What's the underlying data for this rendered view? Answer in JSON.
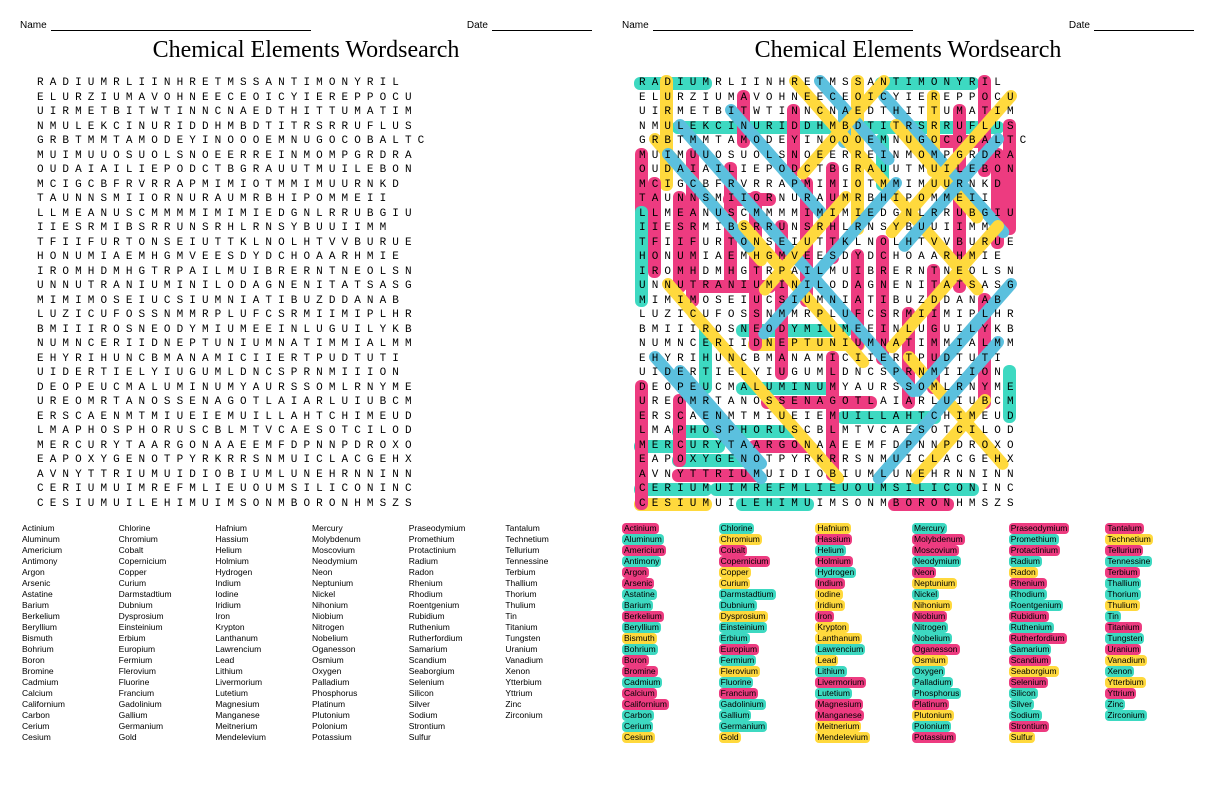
{
  "labels": {
    "name": "Name",
    "date": "Date",
    "title": "Chemical Elements Wordsearch"
  },
  "colors": {
    "pink": "#ed3b80",
    "teal": "#3dd9c1",
    "yellow": "#ffd93d",
    "blue": "#5bc0de"
  },
  "grid": [
    "RADIUMRLIINHRETMSSANTIMONYRIL",
    "ELURZIUMAVOHNEECEOICYIEREPPOCU",
    "UIRMETBITWTINNCNAEDTHITTUMATIM",
    "NMULEKCINURIDDHMBDTITRSRRUFLUS",
    "GRBTMMTAMODEYINOOOEMNUGOCOBALTC",
    "MUIMUUOSUOLSNOEERREINMOMPGRDRA",
    "OUDAIAILIEPODCTBGRAUUTMUILEB ON",
    "MCIGCBFRVRRAPMI MIOTMMIMUURNKD",
    "TAUNNSMIIORNURAUMRBHIPOMMEII",
    "LLMEANUSCMMMMI MIMIEDGNLRRUBGIU",
    "IIESRMIBSRRUNSRHLRNSY BUUIIMM",
    "TFIIFURTONSEIUTTKLNOLHTVVBURUE",
    "HONUMI AEMHGMVEESDYDCHOAARHMIE",
    "IRO MHDMHGTRPAILMUIBRERNTNEOLSN",
    "UNNUTRANI UMINI LODAGNENITATSASG",
    "MI MIMOSEI UCSIUMNIATIBUZDDANAB",
    "LUZICUFOSSNMMRPLUFCSRMI IMI PLHR",
    "BMI IIROSNEODYMI UMEEINLUGUILYKB",
    "NUMNCER IIDNEP TUNIUMNATI MMI ALMM",
    "EHYR IHUNCBMANAMI CIIERTPU DTUTI",
    "UIDERTI ELYI UGUMLDNCSPRN MI II ON",
    "DEOPEUCMALUMI NUMYAURSSOMLRNYME",
    "UREOMRTANOSS ENA GOTLAIARLUIUBCM",
    "ERSCAE NMT MIUEIEMUILLAHTCHIMEUD",
    "LMAPHOSPHORUSCBLMTVCAESOTCILOD",
    "MERCURYTAARGONAAEEMFDPNNPDROXO",
    "EAPOXY G ENOTPY RKRR SNMUICLACGEHX",
    "AVNYTTR IUMUIDIOBIUMLUNEHRNNINN",
    "CER IUMUIMREFMLIEUOUMSILICON INC",
    "CES IUMUILEH IMUI MSONMBORONHMSZS"
  ],
  "word_columns": [
    [
      "Actinium",
      "Aluminum",
      "Americium",
      "Antimony",
      "Argon",
      "Arsenic",
      "Astatine",
      "Barium",
      "Berkelium",
      "Beryllium",
      "Bismuth",
      "Bohrium",
      "Boron",
      "Bromine",
      "Cadmium",
      "Calcium",
      "Californium",
      "Carbon",
      "Cerium",
      "Cesium"
    ],
    [
      "Chlorine",
      "Chromium",
      "Cobalt",
      "Copernicium",
      "Copper",
      "Curium",
      "Darmstadtium",
      "Dubnium",
      "Dysprosium",
      "Einsteinium",
      "Erbium",
      "Europium",
      "Fermium",
      "Flerovium",
      "Fluorine",
      "Francium",
      "Gadolinium",
      "Gallium",
      "Germanium",
      "Gold"
    ],
    [
      "Hafnium",
      "Hassium",
      "Helium",
      "Holmium",
      "Hydrogen",
      "Indium",
      "Iodine",
      "Iridium",
      "Iron",
      "Krypton",
      "Lanthanum",
      "Lawrencium",
      "Lead",
      "Lithium",
      "Livermorium",
      "Lutetium",
      "Magnesium",
      "Manganese",
      "Meitnerium",
      "Mendelevium"
    ],
    [
      "Mercury",
      "Molybdenum",
      "Moscovium",
      "Neodymium",
      "Neon",
      "Neptunium",
      "Nickel",
      "Nihonium",
      "Niobium",
      "Nitrogen",
      "Nobelium",
      "Oganesson",
      "Osmium",
      "Oxygen",
      "Palladium",
      "Phosphorus",
      "Platinum",
      "Plutonium",
      "Polonium",
      "Potassium"
    ],
    [
      "Praseodymium",
      "Promethium",
      "Protactinium",
      "Radium",
      "Radon",
      "Rhenium",
      "Rhodium",
      "Roentgenium",
      "Rubidium",
      "Ruthenium",
      "Rutherfordium",
      "Samarium",
      "Scandium",
      "Seaborgium",
      "Selenium",
      "Silicon",
      "Silver",
      "Sodium",
      "Strontium",
      "Sulfur"
    ],
    [
      "Tantalum",
      "Technetium",
      "Tellurium",
      "Tennessine",
      "Terbium",
      "Thallium",
      "Thorium",
      "Thulium",
      "Tin",
      "Titanium",
      "Tungsten",
      "Uranium",
      "Vanadium",
      "Xenon",
      "Ytterbium",
      "Yttrium",
      "Zinc",
      "Zirconium"
    ]
  ],
  "word_colors_right": [
    [
      "pink",
      "teal",
      "pink",
      "teal",
      "pink",
      "pink",
      "teal",
      "teal",
      "pink",
      "teal",
      "yellow",
      "teal",
      "pink",
      "pink",
      "teal",
      "pink",
      "pink",
      "teal",
      "teal",
      "yellow"
    ],
    [
      "teal",
      "yellow",
      "pink",
      "pink",
      "yellow",
      "yellow",
      "teal",
      "teal",
      "yellow",
      "teal",
      "teal",
      "pink",
      "teal",
      "yellow",
      "teal",
      "pink",
      "teal",
      "teal",
      "teal",
      "yellow"
    ],
    [
      "yellow",
      "pink",
      "teal",
      "pink",
      "teal",
      "pink",
      "yellow",
      "yellow",
      "pink",
      "yellow",
      "yellow",
      "teal",
      "yellow",
      "teal",
      "pink",
      "teal",
      "pink",
      "pink",
      "yellow",
      "yellow"
    ],
    [
      "teal",
      "pink",
      "pink",
      "teal",
      "pink",
      "yellow",
      "teal",
      "yellow",
      "pink",
      "teal",
      "teal",
      "pink",
      "yellow",
      "teal",
      "teal",
      "teal",
      "pink",
      "yellow",
      "teal",
      "pink"
    ],
    [
      "pink",
      "teal",
      "pink",
      "teal",
      "yellow",
      "pink",
      "teal",
      "teal",
      "pink",
      "teal",
      "pink",
      "teal",
      "pink",
      "yellow",
      "pink",
      "teal",
      "teal",
      "teal",
      "pink",
      "yellow"
    ],
    [
      "pink",
      "yellow",
      "pink",
      "teal",
      "pink",
      "teal",
      "teal",
      "yellow",
      "teal",
      "pink",
      "teal",
      "pink",
      "yellow",
      "teal",
      "yellow",
      "pink",
      "teal",
      "teal"
    ]
  ],
  "highlights": [
    {
      "row": 0,
      "col": 0,
      "len": 6,
      "color": "teal"
    },
    {
      "row": 0,
      "col": 19,
      "len": 8,
      "color": "teal"
    },
    {
      "row": 3,
      "col": 3,
      "len": 6,
      "color": "teal"
    },
    {
      "row": 3,
      "col": 3,
      "len": 26,
      "color": "teal"
    },
    {
      "row": 4,
      "col": 22,
      "len": 6,
      "color": "pink"
    },
    {
      "row": 8,
      "col": 7,
      "len": 4,
      "color": "pink"
    },
    {
      "row": 14,
      "col": 4,
      "len": 7,
      "color": "pink"
    },
    {
      "row": 17,
      "col": 8,
      "len": 9,
      "color": "teal"
    },
    {
      "row": 18,
      "col": 9,
      "len": 9,
      "color": "yellow"
    },
    {
      "row": 21,
      "col": 8,
      "len": 8,
      "color": "teal"
    },
    {
      "row": 22,
      "col": 10,
      "len": 9,
      "color": "pink"
    },
    {
      "row": 24,
      "col": 3,
      "len": 10,
      "color": "teal"
    },
    {
      "row": 25,
      "col": 0,
      "len": 7,
      "color": "teal"
    },
    {
      "row": 25,
      "col": 9,
      "len": 5,
      "color": "pink"
    },
    {
      "row": 26,
      "col": 3,
      "len": 6,
      "color": "teal"
    },
    {
      "row": 27,
      "col": 3,
      "len": 7,
      "color": "pink"
    },
    {
      "row": 28,
      "col": 0,
      "len": 6,
      "color": "teal"
    },
    {
      "row": 28,
      "col": 6,
      "len": 17,
      "color": "teal"
    },
    {
      "row": 28,
      "col": 20,
      "len": 7,
      "color": "teal"
    },
    {
      "row": 29,
      "col": 0,
      "len": 6,
      "color": "yellow"
    },
    {
      "row": 29,
      "col": 8,
      "len": 6,
      "color": "teal"
    },
    {
      "row": 29,
      "col": 20,
      "len": 5,
      "color": "pink"
    },
    {
      "row": 23,
      "col": 16,
      "len": 8,
      "color": "teal"
    }
  ],
  "vertical_highlights": [
    {
      "row": 0,
      "col": 2,
      "len": 8,
      "color": "yellow"
    },
    {
      "row": 0,
      "col": 17,
      "len": 11,
      "color": "yellow"
    },
    {
      "row": 0,
      "col": 27,
      "len": 7,
      "color": "pink"
    },
    {
      "row": 1,
      "col": 8,
      "len": 4,
      "color": "pink"
    },
    {
      "row": 1,
      "col": 23,
      "len": 6,
      "color": "yellow"
    },
    {
      "row": 2,
      "col": 12,
      "len": 5,
      "color": "pink"
    },
    {
      "row": 2,
      "col": 16,
      "len": 3,
      "color": "blue"
    },
    {
      "row": 2,
      "col": 25,
      "len": 13,
      "color": "pink"
    },
    {
      "row": 3,
      "col": 29,
      "len": 8,
      "color": "pink"
    },
    {
      "row": 4,
      "col": 19,
      "len": 4,
      "color": "teal"
    },
    {
      "row": 5,
      "col": 0,
      "len": 6,
      "color": "pink"
    },
    {
      "row": 5,
      "col": 4,
      "len": 11,
      "color": "pink"
    },
    {
      "row": 5,
      "col": 28,
      "len": 7,
      "color": "pink"
    },
    {
      "row": 6,
      "col": 7,
      "len": 9,
      "color": "pink"
    },
    {
      "row": 6,
      "col": 15,
      "len": 7,
      "color": "pink"
    },
    {
      "row": 7,
      "col": 1,
      "len": 7,
      "color": "pink"
    },
    {
      "row": 7,
      "col": 13,
      "len": 9,
      "color": "pink"
    },
    {
      "row": 8,
      "col": 3,
      "len": 7,
      "color": "pink"
    },
    {
      "row": 8,
      "col": 9,
      "len": 11,
      "color": "pink"
    },
    {
      "row": 9,
      "col": 0,
      "len": 7,
      "color": "teal"
    },
    {
      "row": 10,
      "col": 11,
      "len": 11,
      "color": "pink"
    },
    {
      "row": 11,
      "col": 19,
      "len": 9,
      "color": "pink"
    },
    {
      "row": 12,
      "col": 17,
      "len": 7,
      "color": "pink"
    },
    {
      "row": 13,
      "col": 23,
      "len": 9,
      "color": "pink"
    },
    {
      "row": 15,
      "col": 27,
      "len": 8,
      "color": "pink"
    },
    {
      "row": 16,
      "col": 21,
      "len": 7,
      "color": "pink"
    },
    {
      "row": 17,
      "col": 5,
      "len": 5,
      "color": "teal"
    },
    {
      "row": 19,
      "col": 15,
      "len": 9,
      "color": "pink"
    },
    {
      "row": 20,
      "col": 29,
      "len": 4,
      "color": "teal"
    },
    {
      "row": 21,
      "col": 0,
      "len": 9,
      "color": "pink"
    },
    {
      "row": 22,
      "col": 3,
      "len": 5,
      "color": "pink"
    }
  ],
  "diag_highlights": [
    {
      "row": 0,
      "col": 12,
      "len": 15,
      "color": "yellow",
      "dir": 1
    },
    {
      "row": 0,
      "col": 14,
      "len": 6,
      "color": "blue",
      "dir": 1
    },
    {
      "row": 1,
      "col": 19,
      "len": 10,
      "color": "blue",
      "dir": 1
    },
    {
      "row": 2,
      "col": 7,
      "len": 8,
      "color": "blue",
      "dir": 1
    },
    {
      "row": 3,
      "col": 3,
      "len": 19,
      "color": "blue",
      "dir": 1
    },
    {
      "row": 3,
      "col": 20,
      "len": 7,
      "color": "yellow",
      "dir": 1
    },
    {
      "row": 4,
      "col": 1,
      "len": 9,
      "color": "yellow",
      "dir": 1
    },
    {
      "row": 5,
      "col": 2,
      "len": 7,
      "color": "blue",
      "dir": 1
    },
    {
      "row": 10,
      "col": 8,
      "len": 10,
      "color": "yellow",
      "dir": 1
    },
    {
      "row": 14,
      "col": 2,
      "len": 14,
      "color": "yellow",
      "dir": 1
    },
    {
      "row": 16,
      "col": 4,
      "len": 12,
      "color": "yellow",
      "dir": 1
    },
    {
      "row": 19,
      "col": 1,
      "len": 9,
      "color": "blue",
      "dir": 1
    },
    {
      "row": 19,
      "col": 21,
      "len": 8,
      "color": "yellow",
      "dir": 1
    },
    {
      "row": 20,
      "col": 3,
      "len": 7,
      "color": "blue",
      "dir": 1
    },
    {
      "row": 0,
      "col": 19,
      "len": 7,
      "color": "yellow",
      "dir": -1
    },
    {
      "row": 1,
      "col": 29,
      "len": 10,
      "color": "yellow",
      "dir": -1
    },
    {
      "row": 4,
      "col": 28,
      "len": 8,
      "color": "blue",
      "dir": -1
    },
    {
      "row": 7,
      "col": 20,
      "len": 11,
      "color": "blue",
      "dir": -1
    },
    {
      "row": 8,
      "col": 16,
      "len": 7,
      "color": "yellow",
      "dir": -1
    },
    {
      "row": 10,
      "col": 28,
      "len": 9,
      "color": "yellow",
      "dir": -1
    },
    {
      "row": 14,
      "col": 29,
      "len": 8,
      "color": "blue",
      "dir": -1
    },
    {
      "row": 18,
      "col": 28,
      "len": 10,
      "color": "blue",
      "dir": -1
    },
    {
      "row": 22,
      "col": 27,
      "len": 6,
      "color": "yellow",
      "dir": -1
    }
  ]
}
